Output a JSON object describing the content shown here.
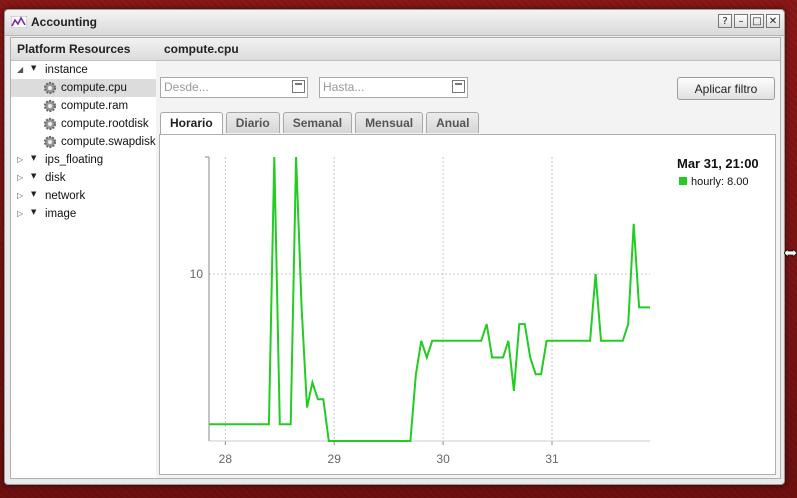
{
  "window": {
    "title": "Accounting",
    "buttons": [
      "?",
      "–",
      "□",
      "✕"
    ]
  },
  "sidebar": {
    "title": "Platform Resources",
    "items": [
      {
        "label": "instance",
        "expanded": true,
        "children": [
          {
            "label": "compute.cpu",
            "icon": "gear-icon",
            "selected": true
          },
          {
            "label": "compute.ram",
            "icon": "gear-icon"
          },
          {
            "label": "compute.rootdisk",
            "icon": "gear-icon"
          },
          {
            "label": "compute.swapdisk",
            "icon": "gear-icon"
          }
        ]
      },
      {
        "label": "ips_floating",
        "expanded": false
      },
      {
        "label": "disk",
        "expanded": false
      },
      {
        "label": "network",
        "expanded": false
      },
      {
        "label": "image",
        "expanded": false
      }
    ]
  },
  "main": {
    "title": "compute.cpu",
    "filter": {
      "from_placeholder": "Desde...",
      "to_placeholder": "Hasta...",
      "apply_label": "Aplicar filtro"
    },
    "tabs": [
      {
        "label": "Horario",
        "active": true
      },
      {
        "label": "Diario"
      },
      {
        "label": "Semanal"
      },
      {
        "label": "Mensual"
      },
      {
        "label": "Anual"
      }
    ]
  },
  "colors": {
    "series": "#22cc22",
    "background": "#7a1414",
    "grid": "#c8c8c8"
  },
  "chart_data": {
    "type": "line",
    "x_tick_labels": [
      "28",
      "29",
      "30",
      "31"
    ],
    "y_tick_labels": [
      "10"
    ],
    "grid": true,
    "legend_placement": "top-right",
    "tooltip": {
      "title": "Mar 31, 21:00",
      "series_label": "hourly: 8.00"
    },
    "series": [
      {
        "values": [
          [
            27.85,
            1
          ],
          [
            28.4,
            1
          ],
          [
            28.45,
            17
          ],
          [
            28.5,
            1
          ],
          [
            28.6,
            1
          ],
          [
            28.65,
            17
          ],
          [
            28.7,
            8
          ],
          [
            28.75,
            2
          ],
          [
            28.8,
            3.5
          ],
          [
            28.85,
            2.5
          ],
          [
            28.9,
            2.5
          ],
          [
            28.95,
            0
          ],
          [
            29.7,
            0
          ],
          [
            29.75,
            4
          ],
          [
            29.8,
            6
          ],
          [
            29.85,
            5
          ],
          [
            29.9,
            6
          ],
          [
            30.35,
            6
          ],
          [
            30.4,
            7
          ],
          [
            30.45,
            5
          ],
          [
            30.55,
            5
          ],
          [
            30.6,
            6
          ],
          [
            30.65,
            3
          ],
          [
            30.7,
            7
          ],
          [
            30.75,
            7
          ],
          [
            30.8,
            5
          ],
          [
            30.85,
            4
          ],
          [
            30.9,
            4
          ],
          [
            30.95,
            6
          ],
          [
            31.35,
            6
          ],
          [
            31.4,
            10
          ],
          [
            31.45,
            6
          ],
          [
            31.65,
            6
          ],
          [
            31.7,
            7
          ],
          [
            31.75,
            13
          ],
          [
            31.8,
            8
          ],
          [
            31.9,
            8
          ]
        ]
      }
    ],
    "xlim": [
      27.85,
      31.9
    ],
    "ylim": [
      0,
      17
    ]
  }
}
